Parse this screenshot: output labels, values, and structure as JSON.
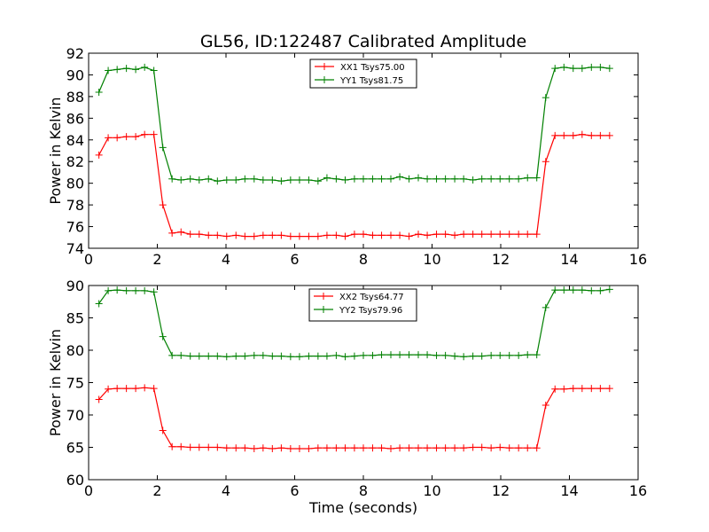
{
  "chart_data": [
    {
      "type": "line",
      "title": "GL56, ID:122487 Calibrated Amplitude",
      "xlabel": "",
      "ylabel": "Power in Kelvin",
      "xlim": [
        0,
        16
      ],
      "ylim": [
        74,
        92
      ],
      "xticks": [
        0,
        2,
        4,
        6,
        8,
        10,
        12,
        14,
        16
      ],
      "yticks": [
        74,
        76,
        78,
        80,
        82,
        84,
        86,
        88,
        90,
        92
      ],
      "legend": "top-center",
      "marker": "+",
      "grid": false,
      "x": [
        0.3,
        0.57,
        0.83,
        1.1,
        1.37,
        1.63,
        1.9,
        2.16,
        2.43,
        2.69,
        2.96,
        3.22,
        3.49,
        3.75,
        4.02,
        4.29,
        4.55,
        4.82,
        5.08,
        5.35,
        5.61,
        5.88,
        6.14,
        6.41,
        6.68,
        6.94,
        7.21,
        7.47,
        7.74,
        8.0,
        8.27,
        8.53,
        8.8,
        9.06,
        9.33,
        9.6,
        9.86,
        10.13,
        10.39,
        10.66,
        10.92,
        11.19,
        11.45,
        11.72,
        11.98,
        12.25,
        12.52,
        12.78,
        13.05,
        13.31,
        13.58,
        13.84,
        14.11,
        14.37,
        14.64,
        14.9,
        15.17
      ],
      "series": [
        {
          "name": "XX1 Tsys75.00",
          "color": "#ff0000",
          "values": [
            82.6,
            84.2,
            84.2,
            84.3,
            84.3,
            84.5,
            84.5,
            78.0,
            75.4,
            75.5,
            75.3,
            75.3,
            75.2,
            75.2,
            75.1,
            75.2,
            75.1,
            75.1,
            75.2,
            75.2,
            75.2,
            75.1,
            75.1,
            75.1,
            75.1,
            75.2,
            75.2,
            75.1,
            75.3,
            75.3,
            75.2,
            75.2,
            75.2,
            75.2,
            75.1,
            75.3,
            75.2,
            75.3,
            75.3,
            75.2,
            75.3,
            75.3,
            75.3,
            75.3,
            75.3,
            75.3,
            75.3,
            75.3,
            75.3,
            82.0,
            84.4,
            84.4,
            84.4,
            84.5,
            84.4,
            84.4,
            84.4
          ]
        },
        {
          "name": "YY1 Tsys81.75",
          "color": "#008000",
          "values": [
            88.4,
            90.4,
            90.5,
            90.6,
            90.5,
            90.7,
            90.4,
            83.3,
            80.4,
            80.3,
            80.4,
            80.3,
            80.4,
            80.2,
            80.3,
            80.3,
            80.4,
            80.4,
            80.3,
            80.3,
            80.2,
            80.3,
            80.3,
            80.3,
            80.2,
            80.5,
            80.4,
            80.3,
            80.4,
            80.4,
            80.4,
            80.4,
            80.4,
            80.6,
            80.4,
            80.5,
            80.4,
            80.4,
            80.4,
            80.4,
            80.4,
            80.3,
            80.4,
            80.4,
            80.4,
            80.4,
            80.4,
            80.5,
            80.5,
            87.9,
            90.6,
            90.7,
            90.6,
            90.6,
            90.7,
            90.7,
            90.6
          ]
        }
      ]
    },
    {
      "type": "line",
      "title": "",
      "xlabel": "Time (seconds)",
      "ylabel": "Power in Kelvin",
      "xlim": [
        0,
        16
      ],
      "ylim": [
        60,
        90
      ],
      "xticks": [
        0,
        2,
        4,
        6,
        8,
        10,
        12,
        14,
        16
      ],
      "yticks": [
        60,
        65,
        70,
        75,
        80,
        85,
        90
      ],
      "legend": "top-center",
      "marker": "+",
      "grid": false,
      "x": [
        0.3,
        0.57,
        0.83,
        1.1,
        1.37,
        1.63,
        1.9,
        2.16,
        2.43,
        2.69,
        2.96,
        3.22,
        3.49,
        3.75,
        4.02,
        4.29,
        4.55,
        4.82,
        5.08,
        5.35,
        5.61,
        5.88,
        6.14,
        6.41,
        6.68,
        6.94,
        7.21,
        7.47,
        7.74,
        8.0,
        8.27,
        8.53,
        8.8,
        9.06,
        9.33,
        9.6,
        9.86,
        10.13,
        10.39,
        10.66,
        10.92,
        11.19,
        11.45,
        11.72,
        11.98,
        12.25,
        12.52,
        12.78,
        13.05,
        13.31,
        13.58,
        13.84,
        14.11,
        14.37,
        14.64,
        14.9,
        15.17
      ],
      "series": [
        {
          "name": "XX2 Tsys64.77",
          "color": "#ff0000",
          "values": [
            72.4,
            74.0,
            74.1,
            74.1,
            74.1,
            74.2,
            74.1,
            67.6,
            65.1,
            65.1,
            65.0,
            65.0,
            65.0,
            65.0,
            64.9,
            64.9,
            64.9,
            64.8,
            64.9,
            64.8,
            64.9,
            64.8,
            64.8,
            64.8,
            64.9,
            64.9,
            64.9,
            64.9,
            64.9,
            64.9,
            64.9,
            64.9,
            64.8,
            64.9,
            64.9,
            64.9,
            64.9,
            64.9,
            64.9,
            64.9,
            64.9,
            65.0,
            65.0,
            64.9,
            65.0,
            64.9,
            64.9,
            64.9,
            64.9,
            71.5,
            74.0,
            74.0,
            74.1,
            74.1,
            74.1,
            74.1,
            74.1
          ]
        },
        {
          "name": "YY2 Tsys79.96",
          "color": "#008000",
          "values": [
            87.2,
            89.2,
            89.3,
            89.2,
            89.2,
            89.2,
            89.0,
            82.1,
            79.2,
            79.2,
            79.1,
            79.1,
            79.1,
            79.1,
            79.0,
            79.1,
            79.1,
            79.2,
            79.2,
            79.1,
            79.1,
            79.0,
            79.0,
            79.1,
            79.1,
            79.1,
            79.2,
            79.0,
            79.1,
            79.2,
            79.2,
            79.3,
            79.3,
            79.3,
            79.3,
            79.3,
            79.3,
            79.2,
            79.2,
            79.1,
            79.0,
            79.1,
            79.1,
            79.2,
            79.2,
            79.2,
            79.2,
            79.3,
            79.3,
            86.6,
            89.3,
            89.3,
            89.3,
            89.3,
            89.2,
            89.2,
            89.4
          ]
        }
      ]
    }
  ]
}
